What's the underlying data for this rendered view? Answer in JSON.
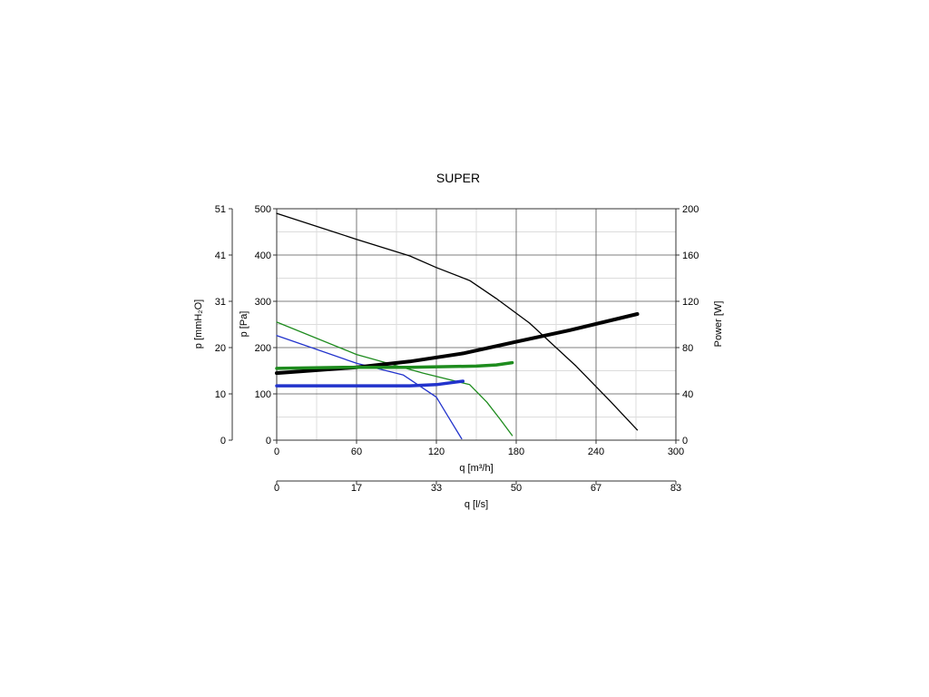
{
  "chart_data": {
    "type": "line",
    "title": "SUPER",
    "xlabel": "q [m³/h]",
    "x2label": "q [l/s]",
    "ylabel": "p [Pa]",
    "y2label": "p [mmH₂O]",
    "y3label": "Power [W]",
    "xlim": [
      0,
      300
    ],
    "ylim": [
      0,
      500
    ],
    "y3lim": [
      0,
      200
    ],
    "grid": true,
    "x_ticks": [
      0,
      60,
      120,
      180,
      240,
      300
    ],
    "x2_ticks": [
      "0",
      "17",
      "33",
      "50",
      "67",
      "83"
    ],
    "y_ticks": [
      0,
      100,
      200,
      300,
      400,
      500
    ],
    "y2_ticks": [
      "0",
      "10",
      "20",
      "31",
      "41",
      "51"
    ],
    "y3_ticks": [
      0,
      40,
      80,
      120,
      160,
      200
    ],
    "series": [
      {
        "color": "#000000",
        "width": 1.3,
        "axis": "pressure",
        "points": [
          [
            0,
            490
          ],
          [
            60,
            434
          ],
          [
            100,
            398
          ],
          [
            120,
            373
          ],
          [
            145,
            345
          ],
          [
            165,
            306
          ],
          [
            190,
            253
          ],
          [
            225,
            160
          ],
          [
            250,
            86
          ],
          [
            271,
            22
          ]
        ]
      },
      {
        "color": "#1e8c1e",
        "width": 1.3,
        "axis": "pressure",
        "points": [
          [
            0,
            255
          ],
          [
            60,
            185
          ],
          [
            110,
            145
          ],
          [
            145,
            120
          ],
          [
            158,
            82
          ],
          [
            168,
            45
          ],
          [
            177,
            10
          ]
        ]
      },
      {
        "color": "#2233cc",
        "width": 1.3,
        "axis": "pressure",
        "points": [
          [
            0,
            226
          ],
          [
            60,
            166
          ],
          [
            95,
            141
          ],
          [
            120,
            93
          ],
          [
            128,
            55
          ],
          [
            139,
            3
          ]
        ]
      },
      {
        "color": "#000000",
        "width": 4,
        "axis": "power",
        "points": [
          [
            0,
            58
          ],
          [
            60,
            63
          ],
          [
            100,
            68
          ],
          [
            140,
            75
          ],
          [
            180,
            85
          ],
          [
            220,
            95
          ],
          [
            271,
            109
          ]
        ]
      },
      {
        "color": "#1e8c1e",
        "width": 3.5,
        "axis": "power",
        "points": [
          [
            0,
            62
          ],
          [
            50,
            63
          ],
          [
            100,
            63
          ],
          [
            150,
            64
          ],
          [
            165,
            65
          ],
          [
            177,
            67
          ]
        ]
      },
      {
        "color": "#2233cc",
        "width": 3.5,
        "axis": "power",
        "points": [
          [
            0,
            47
          ],
          [
            50,
            47
          ],
          [
            100,
            47
          ],
          [
            120,
            48
          ],
          [
            140,
            51
          ]
        ]
      }
    ]
  }
}
